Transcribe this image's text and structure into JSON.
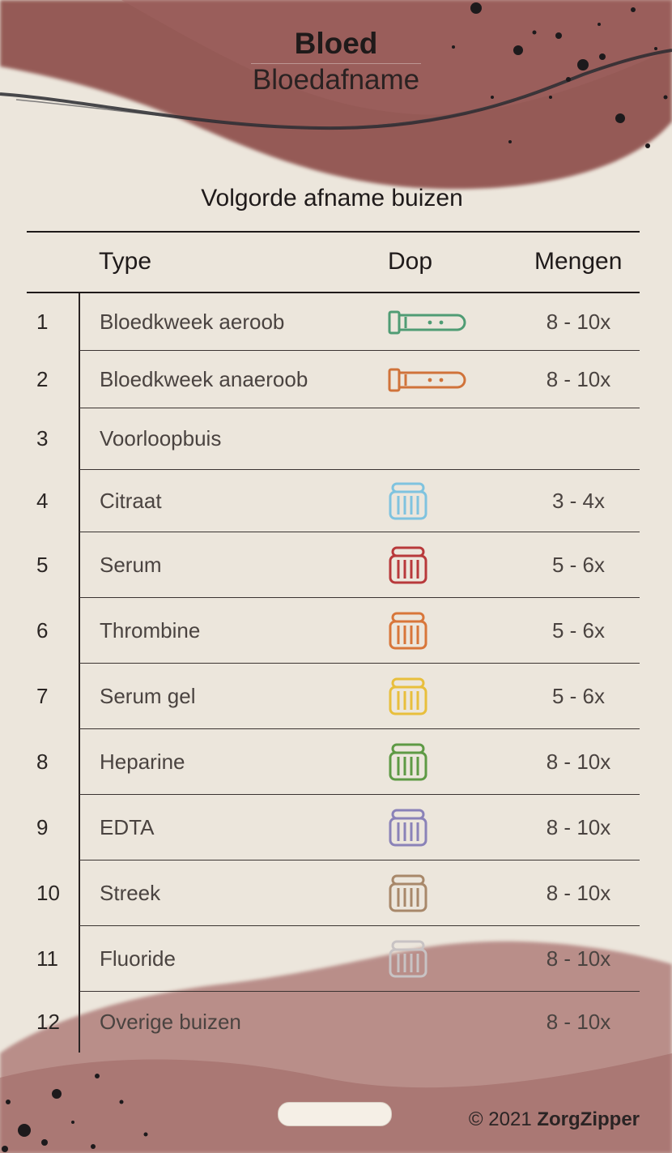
{
  "header": {
    "title": "Bloed",
    "subtitle": "Bloedafname"
  },
  "section_title": "Volgorde afname buizen",
  "columns": {
    "type": "Type",
    "cap": "Dop",
    "mix": "Mengen"
  },
  "rows": [
    {
      "num": "1",
      "type": "Bloedkweek aeroob",
      "cap": "bottle-cap-icon",
      "cap_color": "#4f9c74",
      "mix": "8 - 10x"
    },
    {
      "num": "2",
      "type": "Bloedkweek anaeroob",
      "cap": "bottle-cap-icon",
      "cap_color": "#d0733a",
      "mix": "8 - 10x"
    },
    {
      "num": "3",
      "type": "Voorloopbuis",
      "cap": "",
      "cap_color": "",
      "mix": ""
    },
    {
      "num": "4",
      "type": "Citraat",
      "cap": "tube-cap-icon",
      "cap_color": "#7fc3df",
      "mix": "3 - 4x"
    },
    {
      "num": "5",
      "type": "Serum",
      "cap": "tube-cap-icon",
      "cap_color": "#b8393b",
      "mix": "5 - 6x"
    },
    {
      "num": "6",
      "type": "Thrombine",
      "cap": "tube-cap-icon",
      "cap_color": "#d8763a",
      "mix": "5 - 6x"
    },
    {
      "num": "7",
      "type": "Serum gel",
      "cap": "tube-cap-icon",
      "cap_color": "#e8bf3c",
      "mix": "5 - 6x"
    },
    {
      "num": "8",
      "type": "Heparine",
      "cap": "tube-cap-icon",
      "cap_color": "#5e9a45",
      "mix": "8 - 10x"
    },
    {
      "num": "9",
      "type": "EDTA",
      "cap": "tube-cap-icon",
      "cap_color": "#8a82b8",
      "mix": "8 - 10x"
    },
    {
      "num": "10",
      "type": "Streek",
      "cap": "tube-cap-icon",
      "cap_color": "#a8886a",
      "mix": "8 - 10x"
    },
    {
      "num": "11",
      "type": "Fluoride",
      "cap": "tube-cap-icon",
      "cap_color": "#c8c3c4",
      "mix": "8 - 10x"
    },
    {
      "num": "12",
      "type": "Overige buizen",
      "cap": "",
      "cap_color": "",
      "mix": "8 - 10x"
    }
  ],
  "footer": {
    "copyright": "© 2021",
    "brand": "ZorgZipper"
  },
  "colors": {
    "accent": "#8c4a48",
    "paper": "#ece6dc",
    "ink": "#1f1a1a"
  }
}
